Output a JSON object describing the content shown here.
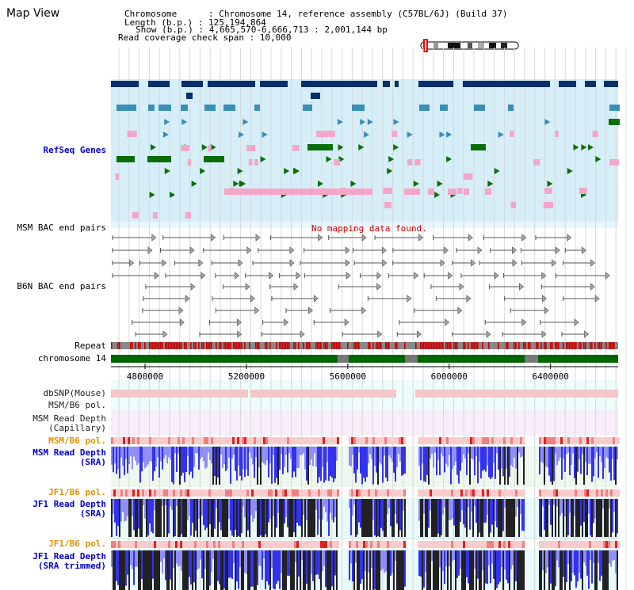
{
  "page_title": "Map View",
  "info": {
    "chromosome_line": "Chromosome      : Chromosome 14, reference assembly (C57BL/6J) (Build 37)",
    "length_line": "Length (b.p.) : 125,194,864",
    "show_line": "Show (b.p.) : 4,665,570-6,666,713 : 2,001,144 bp",
    "coverage_line": "Read coverage check span : 10,000"
  },
  "tracks": {
    "refseq": "RefSeq Genes",
    "msm_bac": "MSM BAC end pairs",
    "b6n_bac": "B6N BAC end pairs",
    "repeat": "Repeat",
    "chromosome": "chromosome 14",
    "dbsnp": "dbSNP(Mouse)",
    "msm_b6_pol_1": "MSM/B6 pol.",
    "msm_read_depth_cap_1": "MSM Read Depth",
    "msm_read_depth_cap_2": "(Capillary)",
    "msm_b6_pol_2": "MSM/B6 pol.",
    "msm_read_depth_sra_1": "MSM Read Depth",
    "msm_read_depth_sra_2": "(SRA)",
    "jf1_b6_pol_1": "JF1/B6 pol.",
    "jf1_read_depth_sra_1": "JF1 Read Depth",
    "jf1_read_depth_sra_2": "(SRA)",
    "jf1_b6_pol_2": "JF1/B6 pol.",
    "jf1_read_depth_trim_1": "JF1 Read Depth",
    "jf1_read_depth_trim_2": "(SRA trimmed)"
  },
  "no_mapping": "No mapping data found.",
  "axis": {
    "start": 4665570,
    "end": 6666713,
    "ticks": [
      "4800000",
      "5200000",
      "5600000",
      "6000000",
      "6400000"
    ]
  },
  "colors": {
    "refseq_bg": "#d6eef8",
    "gene_dark": "#0a2f6b",
    "gene_mid": "#3a8fb6",
    "gene_green": "#0a6e0a",
    "gene_pink": "#f4a6c8",
    "chrom_green": "#006600",
    "repeat_red": "#cc0000",
    "depth_blue": "#3333ee",
    "depth_black": "#222222"
  }
}
